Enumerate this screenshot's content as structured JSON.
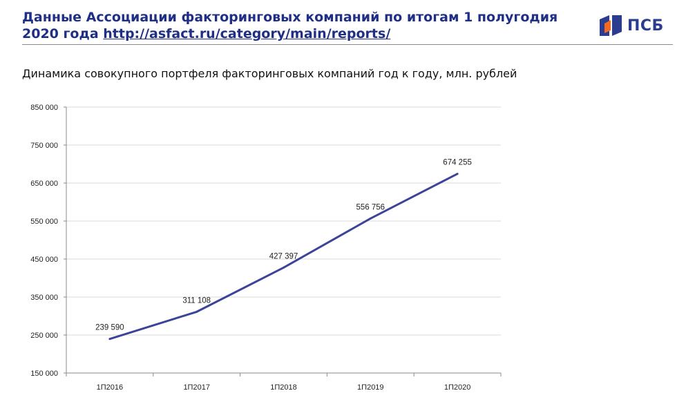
{
  "header": {
    "title_text": "Данные Ассоциации факторинговых компаний по итогам 1 полугодия 2020 года ",
    "link_text": "http://asfact.ru/category/main/reports/",
    "logo_text": "ПСБ"
  },
  "subtitle": "Динамика совокупного портфеля факторинговых компаний год к году, млн. рублей",
  "colors": {
    "title": "#1f2f86",
    "line": "#3b4496",
    "logo_blue": "#2a3d8f",
    "logo_orange": "#f26a21"
  },
  "chart_data": {
    "type": "line",
    "categories": [
      "1П2016",
      "1П2017",
      "1П2018",
      "1П2019",
      "1П2020"
    ],
    "series": [
      {
        "values": [
          239590,
          311108,
          427397,
          556756,
          674255
        ]
      }
    ],
    "data_labels": [
      "239 590",
      "311 108",
      "427 397",
      "556 756",
      "674 255"
    ],
    "yticks": [
      150000,
      250000,
      350000,
      450000,
      550000,
      650000,
      750000,
      850000
    ],
    "ytick_labels": [
      "150 000",
      "250 000",
      "350 000",
      "450 000",
      "550 000",
      "650 000",
      "750 000",
      "850 000"
    ],
    "ylim": [
      150000,
      850000
    ],
    "grid": true,
    "legend": "none"
  }
}
